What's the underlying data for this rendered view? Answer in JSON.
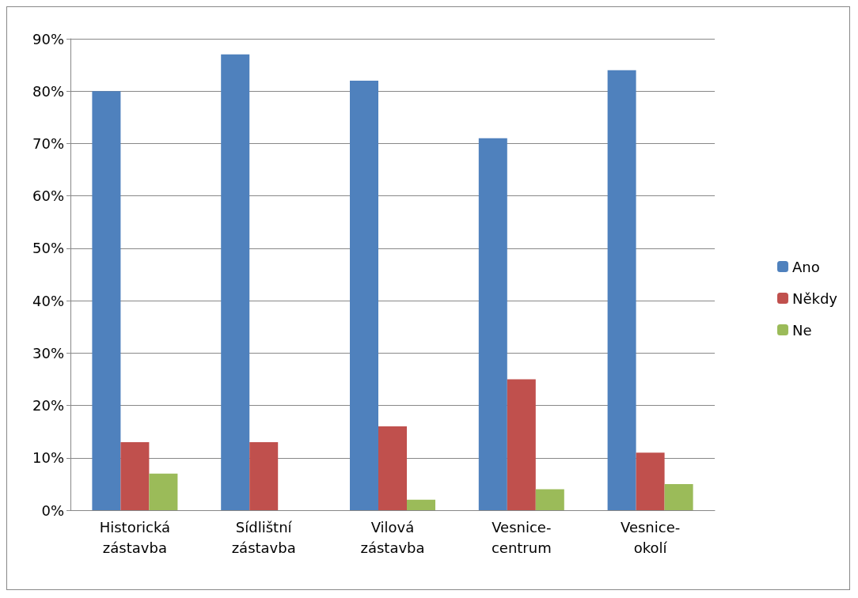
{
  "chart_data": {
    "type": "bar",
    "categories": [
      "Historická\nzástavba",
      "Sídlištní\nzástavba",
      "Vilová\nzástavba",
      "Vesnice-\ncentrum",
      "Vesnice-\nokolí"
    ],
    "series": [
      {
        "name": "Ano",
        "color": "#4f81bd",
        "values": [
          80,
          87,
          82,
          71,
          84
        ]
      },
      {
        "name": "Někdy",
        "color": "#c0504d",
        "values": [
          13,
          13,
          16,
          25,
          11
        ]
      },
      {
        "name": "Ne",
        "color": "#9bbb59",
        "values": [
          7,
          0,
          2,
          4,
          5
        ]
      }
    ],
    "ylim": [
      0,
      90
    ],
    "yticks": [
      {
        "value": 0,
        "label": "0%"
      },
      {
        "value": 10,
        "label": "10%"
      },
      {
        "value": 20,
        "label": "20%"
      },
      {
        "value": 30,
        "label": "30%"
      },
      {
        "value": 40,
        "label": "40%"
      },
      {
        "value": 50,
        "label": "50%"
      },
      {
        "value": 60,
        "label": "60%"
      },
      {
        "value": 70,
        "label": "70%"
      },
      {
        "value": 80,
        "label": "80%"
      },
      {
        "value": 90,
        "label": "90%"
      }
    ],
    "grid": "y",
    "legend": "right"
  }
}
